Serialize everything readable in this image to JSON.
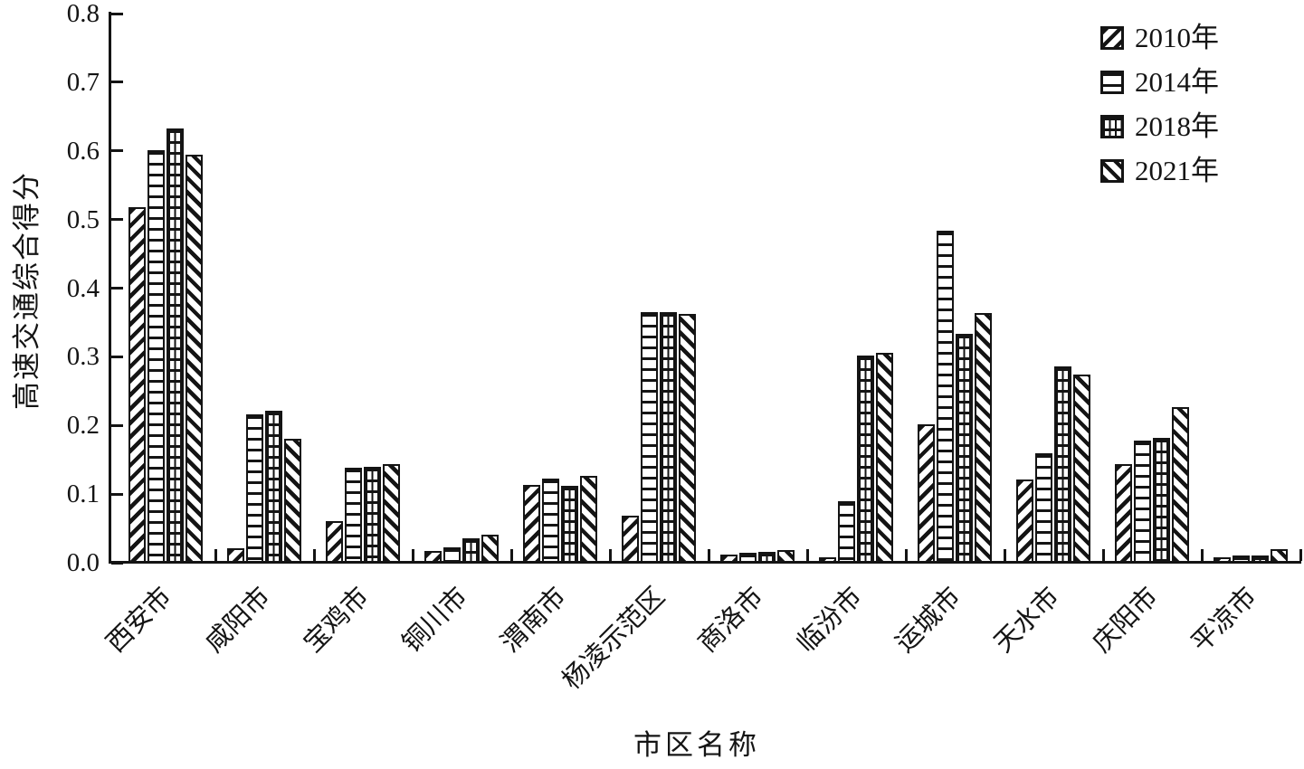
{
  "chart_data": {
    "type": "bar",
    "title": "",
    "xlabel": "市区名称",
    "ylabel": "高速交通综合得分",
    "ylim": [
      0.0,
      0.8
    ],
    "ytick_labels": [
      "0.0",
      "0.1",
      "0.2",
      "0.3",
      "0.4",
      "0.5",
      "0.6",
      "0.7",
      "0.8"
    ],
    "grid": false,
    "legend_position": "top-right",
    "categories": [
      "西安市",
      "咸阳市",
      "宝鸡市",
      "铜川市",
      "渭南市",
      "杨凌示范区",
      "商洛市",
      "临汾市",
      "运城市",
      "天水市",
      "庆阳市",
      "平凉市"
    ],
    "series": [
      {
        "name": "2010年",
        "pattern": "diagonal-forward-hatch",
        "values": [
          0.518,
          0.021,
          0.06,
          0.017,
          0.113,
          0.069,
          0.012,
          0.008,
          0.201,
          0.121,
          0.143,
          0.008
        ]
      },
      {
        "name": "2014年",
        "pattern": "horizontal-lines",
        "values": [
          0.601,
          0.216,
          0.138,
          0.023,
          0.122,
          0.365,
          0.014,
          0.09,
          0.484,
          0.16,
          0.178,
          0.01
        ]
      },
      {
        "name": "2018年",
        "pattern": "grid-hatch",
        "values": [
          0.633,
          0.222,
          0.14,
          0.035,
          0.112,
          0.365,
          0.016,
          0.302,
          0.333,
          0.286,
          0.182,
          0.011
        ]
      },
      {
        "name": "2021年",
        "pattern": "diagonal-backward-hatch",
        "values": [
          0.594,
          0.181,
          0.144,
          0.041,
          0.127,
          0.362,
          0.018,
          0.306,
          0.364,
          0.274,
          0.227,
          0.02
        ]
      }
    ],
    "colors": {
      "bar_fill": "#ffffff",
      "stroke": "#141414",
      "text": "#141414",
      "background": "#ffffff"
    }
  }
}
